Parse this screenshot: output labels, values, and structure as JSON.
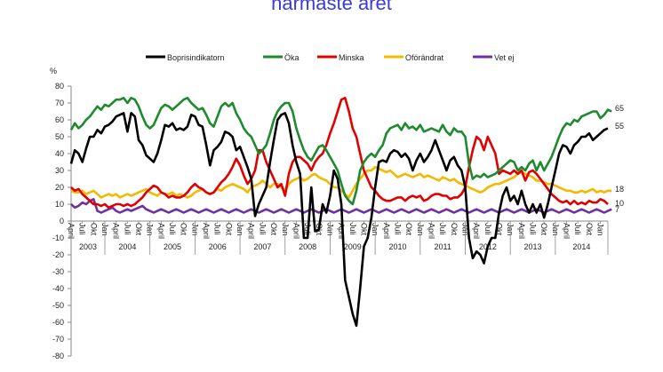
{
  "chart_data": {
    "type": "line",
    "title": "närmaste året",
    "ylabel": "%",
    "ylim": [
      -80,
      80
    ],
    "yticks": [
      80,
      70,
      60,
      50,
      40,
      30,
      20,
      10,
      0,
      -10,
      -20,
      -30,
      -40,
      -50,
      -60,
      -70,
      -80
    ],
    "grid": false,
    "legend_position": "top",
    "years": [
      "2003",
      "2004",
      "2005",
      "2006",
      "2007",
      "2008",
      "2009",
      "2010",
      "2011",
      "2012",
      "2013",
      "2014"
    ],
    "month_ticks": [
      "April",
      "Juli",
      "Okt",
      "Jan"
    ],
    "end_labels": [
      "65",
      "55",
      "18",
      "10",
      "7"
    ],
    "series": [
      {
        "name": "Boprisindikatorn",
        "color": "#000000",
        "values": [
          34,
          42,
          40,
          35,
          43,
          50,
          50,
          54,
          52,
          56,
          57,
          59,
          62,
          63,
          64,
          53,
          64,
          62,
          48,
          45,
          39,
          37,
          35,
          40,
          48,
          57,
          56,
          58,
          54,
          55,
          54,
          56,
          63,
          62,
          57,
          56,
          45,
          33,
          42,
          44,
          47,
          53,
          52,
          50,
          42,
          44,
          38,
          32,
          25,
          3,
          10,
          15,
          20,
          35,
          48,
          60,
          63,
          64,
          58,
          45,
          35,
          28,
          -10,
          -10,
          20,
          -6,
          -5,
          10,
          5,
          15,
          30,
          25,
          10,
          -35,
          -45,
          -55,
          -62,
          -40,
          -15,
          -10,
          2,
          20,
          35,
          36,
          35,
          40,
          42,
          41,
          38,
          40,
          37,
          30,
          36,
          40,
          35,
          38,
          42,
          48,
          42,
          36,
          30,
          36,
          38,
          33,
          30,
          20,
          -10,
          -22,
          -18,
          -20,
          -25,
          -15,
          -10,
          -10,
          5,
          15,
          20,
          12,
          15,
          10,
          18,
          10,
          5,
          10,
          5,
          10,
          2,
          10,
          20,
          30,
          40,
          45,
          44,
          40,
          45,
          47,
          50,
          50,
          52,
          48,
          50,
          52,
          54,
          55
        ]
      },
      {
        "name": "Öka",
        "color": "#1e8a2e",
        "values": [
          54,
          58,
          55,
          57,
          60,
          62,
          65,
          68,
          66,
          69,
          68,
          70,
          72,
          72,
          73,
          70,
          73,
          72,
          68,
          62,
          57,
          55,
          57,
          62,
          67,
          69,
          68,
          66,
          68,
          70,
          72,
          73,
          70,
          68,
          66,
          67,
          63,
          58,
          56,
          62,
          68,
          70,
          68,
          70,
          64,
          60,
          55,
          52,
          50,
          45,
          40,
          42,
          45,
          52,
          60,
          65,
          68,
          70,
          70,
          65,
          55,
          48,
          42,
          38,
          36,
          40,
          44,
          45,
          42,
          38,
          34,
          30,
          22,
          15,
          12,
          10,
          18,
          30,
          35,
          38,
          40,
          38,
          42,
          45,
          52,
          55,
          56,
          57,
          54,
          58,
          55,
          56,
          54,
          57,
          53,
          54,
          55,
          54,
          53,
          57,
          53,
          51,
          55,
          53,
          53,
          50,
          34,
          25,
          27,
          26,
          28,
          26,
          27,
          28,
          30,
          32,
          34,
          36,
          35,
          30,
          32,
          30,
          34,
          36,
          30,
          35,
          30,
          34,
          38,
          44,
          50,
          55,
          58,
          57,
          60,
          59,
          62,
          63,
          64,
          65,
          65,
          61,
          63,
          66,
          65
        ]
      },
      {
        "name": "Minska",
        "color": "#e00000",
        "values": [
          20,
          18,
          19,
          16,
          14,
          12,
          10,
          10,
          9,
          10,
          8,
          9,
          10,
          10,
          9,
          10,
          9,
          10,
          12,
          14,
          17,
          19,
          21,
          20,
          17,
          16,
          14,
          15,
          14,
          14,
          15,
          17,
          20,
          22,
          20,
          19,
          17,
          16,
          17,
          20,
          23,
          25,
          28,
          32,
          37,
          33,
          27,
          22,
          25,
          30,
          42,
          42,
          35,
          30,
          25,
          20,
          22,
          15,
          28,
          35,
          38,
          38,
          36,
          34,
          30,
          35,
          38,
          40,
          45,
          52,
          58,
          65,
          72,
          73,
          65,
          55,
          50,
          40,
          30,
          25,
          20,
          18,
          15,
          13,
          12,
          12,
          13,
          14,
          14,
          12,
          14,
          15,
          14,
          15,
          12,
          13,
          15,
          16,
          16,
          15,
          15,
          13,
          14,
          14,
          16,
          20,
          32,
          42,
          50,
          48,
          42,
          50,
          45,
          40,
          28,
          30,
          29,
          28,
          30,
          28,
          30,
          24,
          29,
          30,
          28,
          25,
          22,
          19,
          16,
          14,
          12,
          11,
          12,
          10,
          12,
          10,
          11,
          10,
          12,
          11,
          11,
          13,
          12,
          10
        ]
      },
      {
        "name": "Oförändrat",
        "color": "#f5b800",
        "values": [
          18,
          17,
          17,
          18,
          16,
          17,
          18,
          16,
          14,
          15,
          16,
          15,
          16,
          14,
          15,
          16,
          15,
          16,
          17,
          18,
          19,
          17,
          16,
          15,
          17,
          16,
          16,
          17,
          15,
          16,
          15,
          14,
          15,
          17,
          18,
          19,
          17,
          16,
          17,
          19,
          18,
          20,
          21,
          22,
          21,
          20,
          19,
          17,
          20,
          21,
          22,
          24,
          22,
          20,
          22,
          22,
          20,
          18,
          22,
          24,
          25,
          26,
          24,
          25,
          27,
          28,
          26,
          25,
          24,
          22,
          20,
          20,
          18,
          16,
          14,
          18,
          22,
          25,
          28,
          30,
          30,
          32,
          31,
          30,
          29,
          30,
          28,
          26,
          27,
          28,
          27,
          26,
          27,
          28,
          26,
          27,
          26,
          25,
          24,
          26,
          25,
          24,
          25,
          23,
          22,
          21,
          20,
          19,
          18,
          17,
          18,
          20,
          21,
          22,
          22,
          23,
          24,
          25,
          26,
          28,
          29,
          28,
          27,
          26,
          24,
          24,
          23,
          22,
          22,
          21,
          20,
          19,
          18,
          18,
          17,
          17,
          18,
          17,
          18,
          19,
          17,
          18,
          17,
          18,
          18
        ]
      },
      {
        "name": "Vet ej",
        "color": "#7030a0",
        "values": [
          10,
          8,
          9,
          11,
          10,
          12,
          13,
          6,
          5,
          6,
          7,
          8,
          6,
          5,
          6,
          7,
          6,
          7,
          8,
          9,
          7,
          6,
          5,
          6,
          7,
          6,
          5,
          6,
          7,
          6,
          5,
          6,
          7,
          6,
          5,
          6,
          7,
          6,
          5,
          6,
          7,
          6,
          5,
          6,
          7,
          6,
          5,
          6,
          7,
          6,
          5,
          6,
          7,
          6,
          5,
          6,
          7,
          6,
          5,
          6,
          7,
          6,
          5,
          6,
          7,
          6,
          5,
          6,
          7,
          6,
          5,
          6,
          7,
          6,
          5,
          6,
          7,
          6,
          5,
          6,
          7,
          6,
          5,
          6,
          7,
          6,
          5,
          6,
          7,
          6,
          5,
          6,
          7,
          6,
          5,
          6,
          7,
          6,
          5,
          6,
          7,
          6,
          5,
          6,
          7,
          6,
          5,
          6,
          7,
          6,
          5,
          6,
          7,
          6,
          5,
          6,
          7,
          6,
          5,
          6,
          7,
          6,
          5,
          6,
          7,
          6,
          5,
          6,
          7,
          6,
          5,
          6,
          7,
          6,
          5,
          6,
          7,
          6,
          5,
          6,
          7,
          6,
          5,
          6,
          7
        ]
      }
    ]
  }
}
